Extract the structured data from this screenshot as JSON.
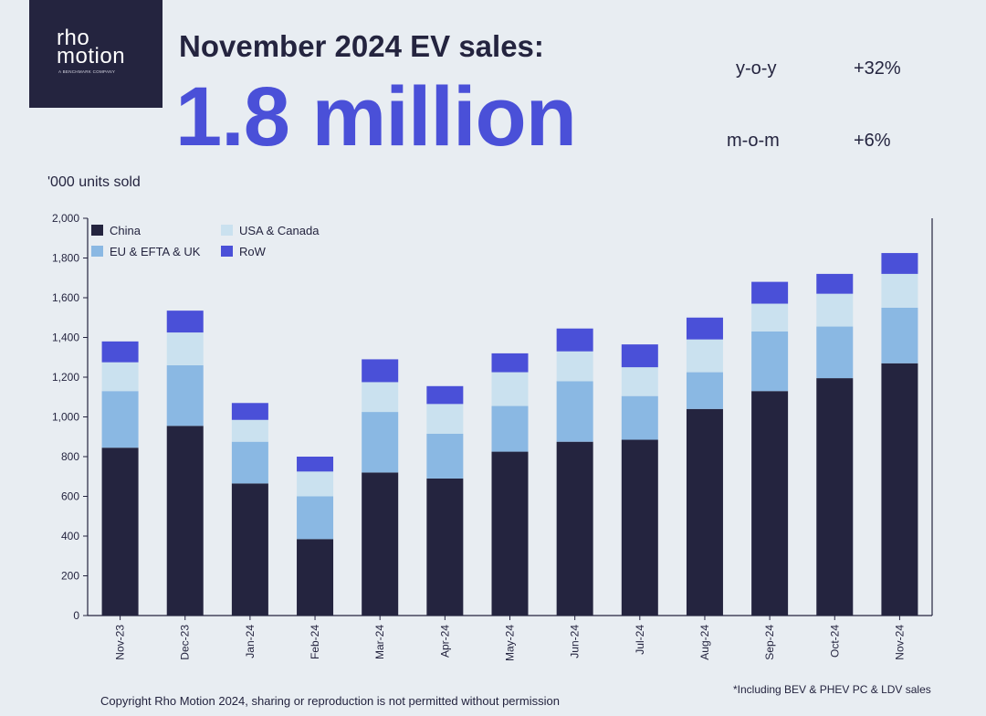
{
  "logo": {
    "line1": "rho",
    "line2": "motion",
    "tagline": "A BENCHMARK COMPANY"
  },
  "header": {
    "title": "November 2024 EV sales:",
    "big_value": "1.8 million"
  },
  "stats": [
    {
      "label": "y-o-y",
      "value": "+32%"
    },
    {
      "label": "m-o-m",
      "value": "+6%"
    }
  ],
  "footer": {
    "copyright": "Copyright Rho Motion 2024, sharing or reproduction is not permitted without permission",
    "footnote": "*Including BEV & PHEV PC & LDV sales"
  },
  "colors": {
    "China": "#24243f",
    "EU & EFTA & UK": "#8ab8e3",
    "USA & Canada": "#cae1ef",
    "RoW": "#4a50d8"
  },
  "chart_data": {
    "type": "bar",
    "stacked": true,
    "title": "November 2024 EV sales",
    "ylabel": "'000 units sold",
    "ylim": [
      0,
      2000
    ],
    "yticks": [
      "0",
      "200",
      "400",
      "600",
      "800",
      "1,000",
      "1,200",
      "1,400",
      "1,600",
      "1,800",
      "2,000"
    ],
    "legend_position": "top-left",
    "categories": [
      "Nov-23",
      "Dec-23",
      "Jan-24",
      "Feb-24",
      "Mar-24",
      "Apr-24",
      "May-24",
      "Jun-24",
      "Jul-24",
      "Aug-24",
      "Sep-24",
      "Oct-24",
      "Nov-24"
    ],
    "series": [
      {
        "name": "China",
        "values": [
          845,
          955,
          665,
          385,
          720,
          690,
          825,
          875,
          885,
          1040,
          1130,
          1195,
          1270
        ]
      },
      {
        "name": "EU & EFTA & UK",
        "values": [
          285,
          305,
          210,
          215,
          305,
          225,
          230,
          305,
          220,
          185,
          300,
          260,
          280
        ]
      },
      {
        "name": "USA & Canada",
        "values": [
          145,
          165,
          110,
          125,
          150,
          150,
          170,
          150,
          145,
          165,
          140,
          165,
          170
        ]
      },
      {
        "name": "RoW",
        "values": [
          105,
          110,
          85,
          75,
          115,
          90,
          95,
          115,
          115,
          110,
          110,
          100,
          105
        ]
      }
    ],
    "legend_order": [
      "China",
      "USA & Canada",
      "EU & EFTA & UK",
      "RoW"
    ]
  }
}
